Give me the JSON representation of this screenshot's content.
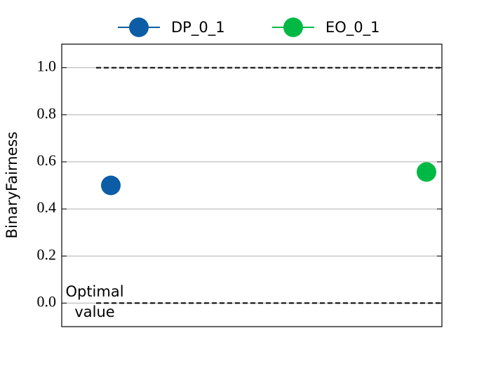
{
  "chart_data": {
    "type": "scatter",
    "y_label": "BinaryFairness",
    "series": [
      {
        "name": "DP_0_1",
        "color": "#0C5DA5",
        "values": [
          0.5
        ]
      },
      {
        "name": "EO_0_1",
        "color": "#00B945",
        "values": [
          0.557
        ]
      }
    ],
    "reference_lines": [
      1.0,
      0.0
    ],
    "annotation": [
      "Optimal",
      "value"
    ],
    "ylim": [
      -0.1,
      1.1
    ],
    "yticks": [
      {
        "value": 0,
        "label": "0.0"
      },
      {
        "value": 0.2,
        "label": "0.2"
      },
      {
        "value": 0.4,
        "label": "0.4"
      },
      {
        "value": 0.6,
        "label": "0.6"
      },
      {
        "value": 0.8,
        "label": "0.8"
      },
      {
        "value": 1,
        "label": "1.0"
      }
    ],
    "grid": true,
    "legend": "top"
  }
}
